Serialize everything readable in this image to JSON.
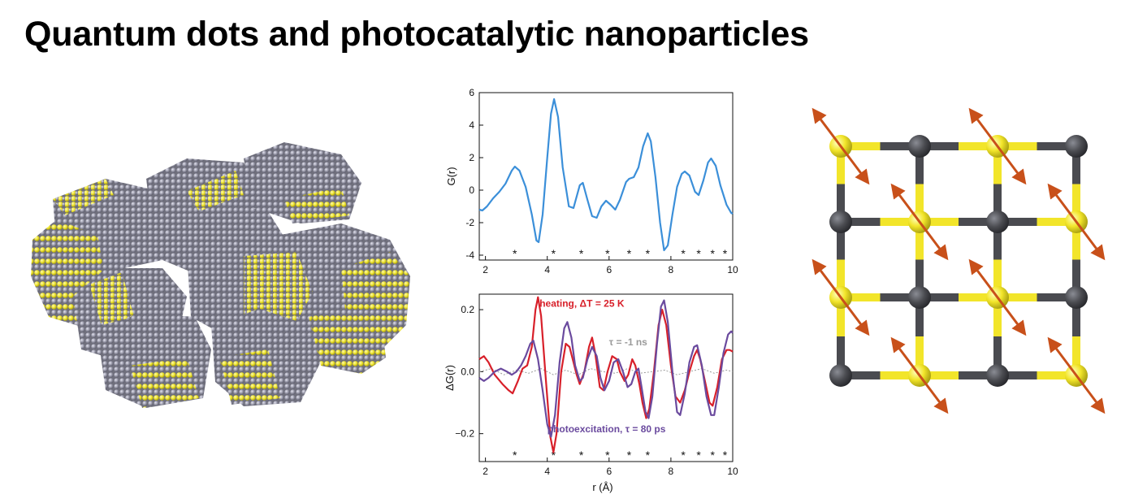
{
  "title": "Quantum dots and photocatalytic nanoparticles",
  "icons": {
    "cluster": "nanoparticle-cluster-icon",
    "lattice": "crystal-lattice-icon"
  },
  "colors": {
    "atom_yellow": "#f2e52a",
    "atom_gray": "#8e8e9c",
    "bond_dark": "#4a4b50",
    "arrow": "#c8501a",
    "curve_blue": "#3b8fd9",
    "curve_red": "#d8202a",
    "curve_purple": "#6a4a9e",
    "curve_gray": "#9a9a9a"
  },
  "chart_data": [
    {
      "type": "line",
      "xlabel": "",
      "ylabel": "G(r)",
      "xlim": [
        1.8,
        10
      ],
      "ylim": [
        -4.3,
        6
      ],
      "xticks": [
        2,
        4,
        6,
        8,
        10
      ],
      "yticks": [
        -4,
        -2,
        0,
        2,
        4,
        6
      ],
      "star_positions": [
        2.95,
        4.2,
        5.1,
        5.95,
        6.65,
        7.25,
        8.4,
        8.9,
        9.35,
        9.75
      ],
      "star_label": "*",
      "series": [
        {
          "name": "",
          "color": "#3b8fd9",
          "points": [
            [
              1.8,
              -1.2
            ],
            [
              1.9,
              -1.25
            ],
            [
              2.05,
              -1.0
            ],
            [
              2.25,
              -0.5
            ],
            [
              2.45,
              -0.1
            ],
            [
              2.65,
              0.4
            ],
            [
              2.85,
              1.2
            ],
            [
              2.95,
              1.45
            ],
            [
              3.1,
              1.2
            ],
            [
              3.3,
              0.2
            ],
            [
              3.5,
              -1.5
            ],
            [
              3.65,
              -3.1
            ],
            [
              3.72,
              -3.2
            ],
            [
              3.85,
              -1.5
            ],
            [
              4.0,
              2.0
            ],
            [
              4.12,
              4.7
            ],
            [
              4.22,
              5.6
            ],
            [
              4.35,
              4.5
            ],
            [
              4.5,
              1.4
            ],
            [
              4.7,
              -1.0
            ],
            [
              4.85,
              -1.1
            ],
            [
              5.05,
              0.3
            ],
            [
              5.15,
              0.45
            ],
            [
              5.3,
              -0.6
            ],
            [
              5.45,
              -1.6
            ],
            [
              5.6,
              -1.7
            ],
            [
              5.75,
              -1.0
            ],
            [
              5.9,
              -0.65
            ],
            [
              6.05,
              -0.9
            ],
            [
              6.2,
              -1.2
            ],
            [
              6.35,
              -0.6
            ],
            [
              6.55,
              0.5
            ],
            [
              6.65,
              0.7
            ],
            [
              6.8,
              0.8
            ],
            [
              6.95,
              1.4
            ],
            [
              7.1,
              2.7
            ],
            [
              7.25,
              3.5
            ],
            [
              7.35,
              3.0
            ],
            [
              7.5,
              0.8
            ],
            [
              7.65,
              -2.0
            ],
            [
              7.78,
              -3.7
            ],
            [
              7.9,
              -3.4
            ],
            [
              8.05,
              -1.5
            ],
            [
              8.2,
              0.2
            ],
            [
              8.35,
              1.0
            ],
            [
              8.45,
              1.15
            ],
            [
              8.6,
              0.9
            ],
            [
              8.78,
              -0.1
            ],
            [
              8.9,
              -0.3
            ],
            [
              9.05,
              0.6
            ],
            [
              9.2,
              1.7
            ],
            [
              9.3,
              1.95
            ],
            [
              9.45,
              1.5
            ],
            [
              9.6,
              0.3
            ],
            [
              9.8,
              -0.9
            ],
            [
              9.95,
              -1.4
            ],
            [
              10.0,
              -1.45
            ]
          ]
        }
      ]
    },
    {
      "type": "line",
      "xlabel": "r (Å)",
      "ylabel": "ΔG(r)",
      "xlim": [
        1.8,
        10
      ],
      "ylim": [
        -0.29,
        0.25
      ],
      "xticks": [
        2,
        4,
        6,
        8,
        10
      ],
      "yticks": [
        -0.2,
        0.0,
        0.2
      ],
      "ytick_labels": [
        "−0.2",
        "0.0",
        "0.2"
      ],
      "star_positions": [
        2.95,
        4.2,
        5.1,
        5.95,
        6.65,
        7.25,
        8.4,
        8.9,
        9.35,
        9.75
      ],
      "star_label": "*",
      "annotations": [
        {
          "text": "heating, ΔT = 25 K",
          "color": "#d8202a",
          "x": 3.75,
          "y": 0.21
        },
        {
          "text": "τ = -1 ns",
          "color": "#9a9a9a",
          "x": 6.0,
          "y": 0.085
        },
        {
          "text": "photoexcitation, τ = 80 ps",
          "color": "#6a4a9e",
          "x": 4.0,
          "y": -0.195
        }
      ],
      "series": [
        {
          "name": "heating, ΔT = 25 K",
          "color": "#d8202a",
          "points": [
            [
              1.8,
              0.04
            ],
            [
              1.95,
              0.05
            ],
            [
              2.1,
              0.03
            ],
            [
              2.3,
              -0.01
            ],
            [
              2.55,
              -0.04
            ],
            [
              2.75,
              -0.06
            ],
            [
              2.88,
              -0.07
            ],
            [
              3.05,
              -0.03
            ],
            [
              3.2,
              0.01
            ],
            [
              3.35,
              0.02
            ],
            [
              3.5,
              0.08
            ],
            [
              3.62,
              0.2
            ],
            [
              3.7,
              0.24
            ],
            [
              3.8,
              0.18
            ],
            [
              3.95,
              -0.02
            ],
            [
              4.1,
              -0.21
            ],
            [
              4.2,
              -0.26
            ],
            [
              4.3,
              -0.2
            ],
            [
              4.45,
              0.0
            ],
            [
              4.6,
              0.09
            ],
            [
              4.72,
              0.08
            ],
            [
              4.85,
              0.03
            ],
            [
              4.95,
              -0.01
            ],
            [
              5.05,
              -0.04
            ],
            [
              5.2,
              0.0
            ],
            [
              5.35,
              0.08
            ],
            [
              5.45,
              0.11
            ],
            [
              5.55,
              0.06
            ],
            [
              5.7,
              -0.05
            ],
            [
              5.82,
              -0.06
            ],
            [
              5.95,
              0.0
            ],
            [
              6.1,
              0.05
            ],
            [
              6.25,
              0.04
            ],
            [
              6.35,
              0.0
            ],
            [
              6.5,
              -0.03
            ],
            [
              6.62,
              -0.01
            ],
            [
              6.75,
              0.04
            ],
            [
              6.85,
              0.02
            ],
            [
              6.98,
              -0.04
            ],
            [
              7.08,
              -0.1
            ],
            [
              7.2,
              -0.15
            ],
            [
              7.3,
              -0.12
            ],
            [
              7.45,
              0.0
            ],
            [
              7.6,
              0.15
            ],
            [
              7.72,
              0.2
            ],
            [
              7.85,
              0.15
            ],
            [
              8.0,
              0.02
            ],
            [
              8.15,
              -0.08
            ],
            [
              8.3,
              -0.1
            ],
            [
              8.45,
              -0.06
            ],
            [
              8.6,
              0.0
            ],
            [
              8.75,
              0.05
            ],
            [
              8.85,
              0.07
            ],
            [
              8.95,
              0.04
            ],
            [
              9.1,
              -0.03
            ],
            [
              9.25,
              -0.1
            ],
            [
              9.35,
              -0.11
            ],
            [
              9.5,
              -0.05
            ],
            [
              9.65,
              0.04
            ],
            [
              9.8,
              0.07
            ],
            [
              9.9,
              0.07
            ],
            [
              10.0,
              0.065
            ]
          ]
        },
        {
          "name": "photoexcitation, τ = 80 ps",
          "color": "#6a4a9e",
          "points": [
            [
              1.8,
              -0.02
            ],
            [
              1.95,
              -0.03
            ],
            [
              2.1,
              -0.02
            ],
            [
              2.3,
              0.0
            ],
            [
              2.5,
              0.01
            ],
            [
              2.7,
              0.0
            ],
            [
              2.85,
              -0.01
            ],
            [
              3.0,
              0.0
            ],
            [
              3.15,
              0.02
            ],
            [
              3.3,
              0.05
            ],
            [
              3.45,
              0.09
            ],
            [
              3.55,
              0.1
            ],
            [
              3.7,
              0.04
            ],
            [
              3.85,
              -0.06
            ],
            [
              4.0,
              -0.17
            ],
            [
              4.12,
              -0.21
            ],
            [
              4.25,
              -0.14
            ],
            [
              4.4,
              0.03
            ],
            [
              4.55,
              0.14
            ],
            [
              4.65,
              0.16
            ],
            [
              4.78,
              0.11
            ],
            [
              4.9,
              0.02
            ],
            [
              5.05,
              -0.03
            ],
            [
              5.15,
              -0.02
            ],
            [
              5.3,
              0.04
            ],
            [
              5.45,
              0.08
            ],
            [
              5.6,
              0.05
            ],
            [
              5.72,
              -0.02
            ],
            [
              5.85,
              -0.06
            ],
            [
              6.0,
              -0.03
            ],
            [
              6.15,
              0.03
            ],
            [
              6.3,
              0.04
            ],
            [
              6.45,
              0.0
            ],
            [
              6.6,
              -0.05
            ],
            [
              6.72,
              -0.04
            ],
            [
              6.85,
              0.0
            ],
            [
              6.95,
              0.01
            ],
            [
              7.05,
              -0.05
            ],
            [
              7.18,
              -0.13
            ],
            [
              7.28,
              -0.15
            ],
            [
              7.4,
              -0.08
            ],
            [
              7.55,
              0.09
            ],
            [
              7.68,
              0.21
            ],
            [
              7.78,
              0.23
            ],
            [
              7.9,
              0.16
            ],
            [
              8.05,
              0.0
            ],
            [
              8.2,
              -0.13
            ],
            [
              8.3,
              -0.14
            ],
            [
              8.45,
              -0.07
            ],
            [
              8.6,
              0.03
            ],
            [
              8.75,
              0.08
            ],
            [
              8.85,
              0.085
            ],
            [
              9.0,
              0.02
            ],
            [
              9.15,
              -0.08
            ],
            [
              9.3,
              -0.14
            ],
            [
              9.4,
              -0.14
            ],
            [
              9.55,
              -0.05
            ],
            [
              9.7,
              0.06
            ],
            [
              9.85,
              0.12
            ],
            [
              9.95,
              0.13
            ],
            [
              10.0,
              0.125
            ]
          ]
        },
        {
          "name": "τ = -1 ns",
          "color": "#9a9a9a",
          "dashed": true,
          "points": [
            [
              1.8,
              0.0
            ],
            [
              2.2,
              0.01
            ],
            [
              2.6,
              -0.01
            ],
            [
              3.0,
              0.005
            ],
            [
              3.4,
              -0.005
            ],
            [
              3.8,
              0.01
            ],
            [
              4.2,
              -0.01
            ],
            [
              4.6,
              0.005
            ],
            [
              5.0,
              -0.01
            ],
            [
              5.4,
              0.01
            ],
            [
              5.8,
              0.0
            ],
            [
              6.2,
              -0.005
            ],
            [
              6.6,
              0.01
            ],
            [
              7.0,
              -0.005
            ],
            [
              7.4,
              0.0
            ],
            [
              7.8,
              0.005
            ],
            [
              8.2,
              -0.01
            ],
            [
              8.6,
              0.0
            ],
            [
              9.0,
              0.01
            ],
            [
              9.4,
              -0.005
            ],
            [
              9.8,
              0.005
            ],
            [
              10.0,
              0.0
            ]
          ]
        }
      ]
    }
  ]
}
